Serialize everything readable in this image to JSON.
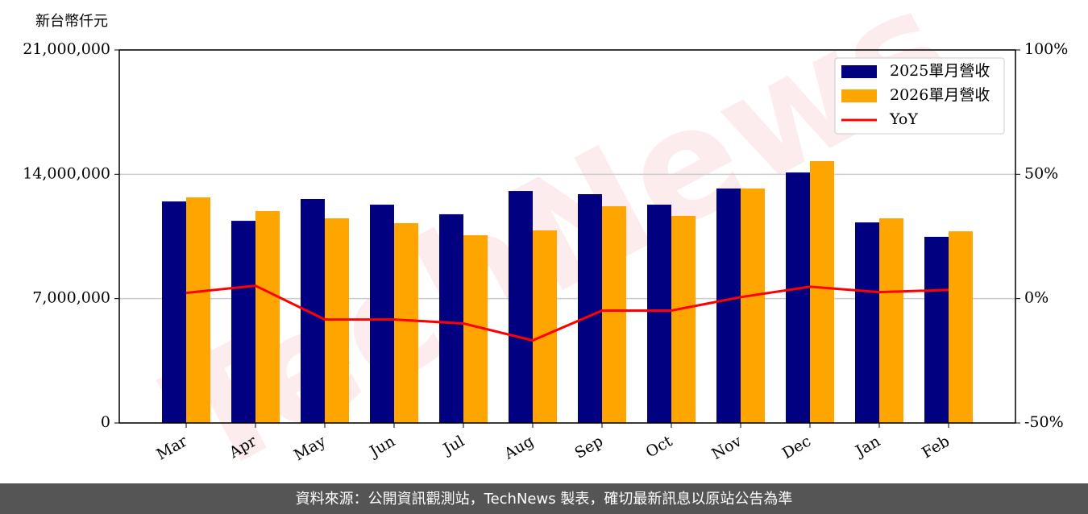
{
  "chart_data": {
    "type": "bar_line",
    "y_axis_label": "新台幣仟元",
    "watermark": "TechNews",
    "footer": "資料來源：公開資訊觀測站，TechNews 製表，確切最新訊息以原站公告為準",
    "categories": [
      "Mar",
      "Apr",
      "May",
      "Jun",
      "Jul",
      "Aug",
      "Sep",
      "Oct",
      "Nov",
      "Dec",
      "Jan",
      "Feb"
    ],
    "series": [
      {
        "name": "2025單月營收",
        "color": "#000080",
        "values": [
          12470000,
          11380000,
          12610000,
          12290000,
          11750000,
          13060000,
          12880000,
          12290000,
          13200000,
          14100000,
          11290000,
          10480000
        ]
      },
      {
        "name": "2026單月營收",
        "color": "#ffa500",
        "values": [
          12700000,
          11930000,
          11520000,
          11250000,
          10570000,
          10840000,
          12200000,
          11660000,
          13200000,
          14740000,
          11520000,
          10790000
        ]
      },
      {
        "name": "YoY",
        "color": "#ff0000",
        "axis": "y2",
        "values": [
          2.3,
          5.2,
          -8.4,
          -8.4,
          -10,
          -16.8,
          -4.8,
          -4.8,
          0.6,
          4.8,
          2.6,
          3.5
        ]
      }
    ],
    "ylim": [
      0,
      21000000
    ],
    "yticks": [
      0,
      {
        "value": 7000000,
        "label": "7,000,000"
      },
      {
        "value": 14000000,
        "label": "14,000,000"
      },
      {
        "value": 21000000,
        "label": "21,000,000"
      }
    ],
    "y2lim": [
      -50,
      100
    ],
    "y2ticks": [
      {
        "value": -50,
        "label": "-50%"
      },
      {
        "value": 0,
        "label": "0%"
      },
      {
        "value": 50,
        "label": "50%"
      },
      {
        "value": 100,
        "label": "100%"
      }
    ],
    "grid": true,
    "legend": "upper right"
  }
}
